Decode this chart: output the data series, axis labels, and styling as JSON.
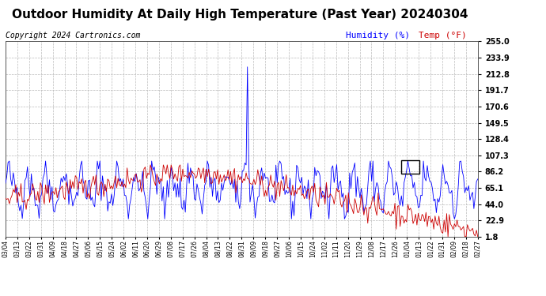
{
  "title": "Outdoor Humidity At Daily High Temperature (Past Year) 20240304",
  "copyright": "Copyright 2024 Cartronics.com",
  "legend_humidity": "Humidity (%)",
  "legend_temp": "Temp (°F)",
  "humidity_color": "#0000FF",
  "temp_color": "#CC0000",
  "background_color": "#FFFFFF",
  "grid_color": "#BBBBBB",
  "yticks_right": [
    1.8,
    22.9,
    44.0,
    65.1,
    86.2,
    107.3,
    128.4,
    149.5,
    170.6,
    191.7,
    212.8,
    233.9,
    255.0
  ],
  "ymin": 1.8,
  "ymax": 255.0,
  "x_labels": [
    "03/04",
    "03/13",
    "03/22",
    "03/31",
    "04/09",
    "04/18",
    "04/27",
    "05/06",
    "05/15",
    "05/24",
    "06/02",
    "06/11",
    "06/20",
    "06/29",
    "07/08",
    "07/17",
    "07/26",
    "08/04",
    "08/13",
    "08/22",
    "08/31",
    "09/09",
    "09/18",
    "09/27",
    "10/06",
    "10/15",
    "10/24",
    "11/02",
    "11/11",
    "11/20",
    "11/29",
    "12/08",
    "12/17",
    "12/26",
    "01/04",
    "01/13",
    "01/22",
    "01/31",
    "02/09",
    "02/18",
    "02/27"
  ],
  "title_fontsize": 11,
  "axis_fontsize": 7,
  "copyright_fontsize": 7,
  "legend_fontsize": 8
}
